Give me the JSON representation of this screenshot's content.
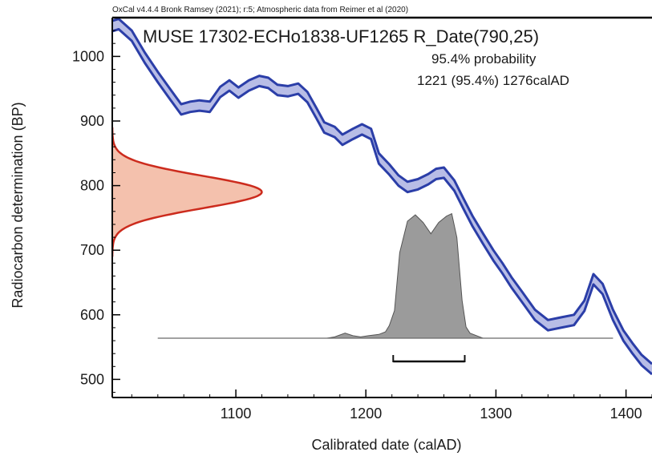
{
  "chart_data": {
    "type": "area",
    "header": "OxCal v4.4.4 Bronk Ramsey (2021); r:5; Atmospheric data from Reimer et al (2020)",
    "title": "MUSE 17302-ECHo1838-UF1265 R_Date(790,25)",
    "probability_label": "95.4% probability",
    "range_label": "1221 (95.4%) 1276calAD",
    "xlabel": "Calibrated date (calAD)",
    "ylabel": "Radiocarbon determination (BP)",
    "xlim": [
      1005,
      1420
    ],
    "ylim": [
      472,
      1060
    ],
    "x_ticks": [
      1100,
      1200,
      1300,
      1400
    ],
    "y_ticks": [
      500,
      600,
      700,
      800,
      900,
      1000
    ],
    "colors": {
      "curve_fill": "#b8bde6",
      "curve_edge": "#2b3ea8",
      "date_fill": "#f4c1ad",
      "date_edge": "#cc2b1d",
      "posterior_fill": "#9b9b9b",
      "posterior_edge": "#555555"
    },
    "calibration_curve": {
      "x": [
        1005,
        1010,
        1020,
        1030,
        1040,
        1050,
        1058,
        1065,
        1072,
        1080,
        1088,
        1095,
        1102,
        1110,
        1118,
        1125,
        1132,
        1140,
        1148,
        1155,
        1162,
        1168,
        1176,
        1182,
        1190,
        1197,
        1204,
        1210,
        1218,
        1225,
        1232,
        1240,
        1248,
        1254,
        1260,
        1268,
        1275,
        1282,
        1290,
        1298,
        1305,
        1312,
        1320,
        1330,
        1340,
        1350,
        1360,
        1368,
        1375,
        1382,
        1390,
        1398,
        1405,
        1412,
        1420
      ],
      "y": [
        1047,
        1050,
        1032,
        998,
        968,
        940,
        918,
        922,
        924,
        922,
        945,
        955,
        944,
        955,
        962,
        959,
        948,
        946,
        950,
        937,
        912,
        890,
        883,
        871,
        880,
        887,
        880,
        842,
        825,
        808,
        798,
        802,
        810,
        818,
        820,
        800,
        772,
        745,
        718,
        692,
        672,
        650,
        628,
        600,
        584,
        588,
        592,
        614,
        655,
        640,
        600,
        568,
        548,
        530,
        516
      ],
      "half_width": 8
    },
    "measurement": {
      "mean": 790,
      "sigma": 25,
      "peak_date": 1120
    },
    "posterior": {
      "x": [
        1040,
        1170,
        1176,
        1184,
        1190,
        1196,
        1202,
        1210,
        1215,
        1218,
        1222,
        1226,
        1232,
        1238,
        1244,
        1250,
        1256,
        1262,
        1266,
        1270,
        1274,
        1277,
        1280,
        1290,
        1390
      ],
      "y": [
        0,
        0,
        0.01,
        0.04,
        0.02,
        0.01,
        0.02,
        0.03,
        0.05,
        0.1,
        0.22,
        0.68,
        0.93,
        0.98,
        0.92,
        0.83,
        0.92,
        0.97,
        0.99,
        0.8,
        0.3,
        0.09,
        0.04,
        0,
        0
      ]
    },
    "range_bar": {
      "from": 1221,
      "to": 1276
    }
  }
}
